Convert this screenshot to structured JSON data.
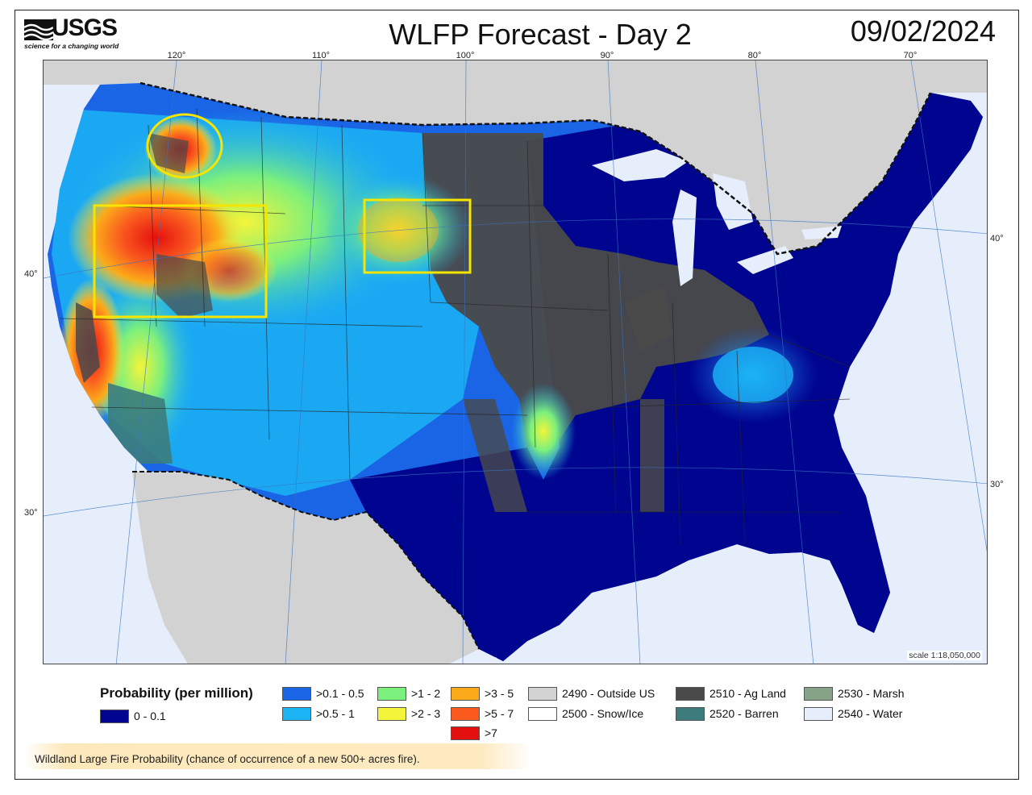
{
  "header": {
    "logo_text": "USGS",
    "logo_tagline": "science for a changing world",
    "title": "WLFP Forecast - Day 2",
    "date": "09/02/2024"
  },
  "map": {
    "longitude_labels": [
      "120°",
      "110°",
      "100°",
      "90°",
      "80°",
      "70°"
    ],
    "latitude_labels_left": [
      "40°",
      "30°"
    ],
    "latitude_labels_right": [
      "40°",
      "30°"
    ],
    "scale": "scale 1:18,050,000",
    "highlight_color": "#f5e500",
    "highlight_areas": [
      "circle",
      "rectangle",
      "rectangle"
    ]
  },
  "legend": {
    "title": "Probability (per million)",
    "items": [
      {
        "label": "0 - 0.1",
        "color": "#00058f"
      },
      {
        "label": ">0.1 - 0.5",
        "color": "#1a64e6"
      },
      {
        "label": ">0.5 - 1",
        "color": "#1cb4f5"
      },
      {
        "label": ">1 - 2",
        "color": "#7cf07c"
      },
      {
        "label": ">2 - 3",
        "color": "#f4f43a"
      },
      {
        "label": ">3 - 5",
        "color": "#fbab1a"
      },
      {
        "label": ">5 -  7",
        "color": "#fa5a1e"
      },
      {
        "label": ">7",
        "color": "#e40f0f"
      },
      {
        "label": "2490 - Outside US",
        "color": "#d2d2d2"
      },
      {
        "label": "2500 - Snow/Ice",
        "color": "#ffffff"
      },
      {
        "label": "2510 - Ag Land",
        "color": "#4a4a4a"
      },
      {
        "label": "2520 - Barren",
        "color": "#3c7c7c"
      },
      {
        "label": "2530 - Marsh",
        "color": "#88a488"
      },
      {
        "label": "2540 - Water",
        "color": "#e6eefc"
      }
    ]
  },
  "footer": {
    "caption": "Wildland Large Fire Probability (chance of occurrence of a new 500+ acres fire)."
  }
}
